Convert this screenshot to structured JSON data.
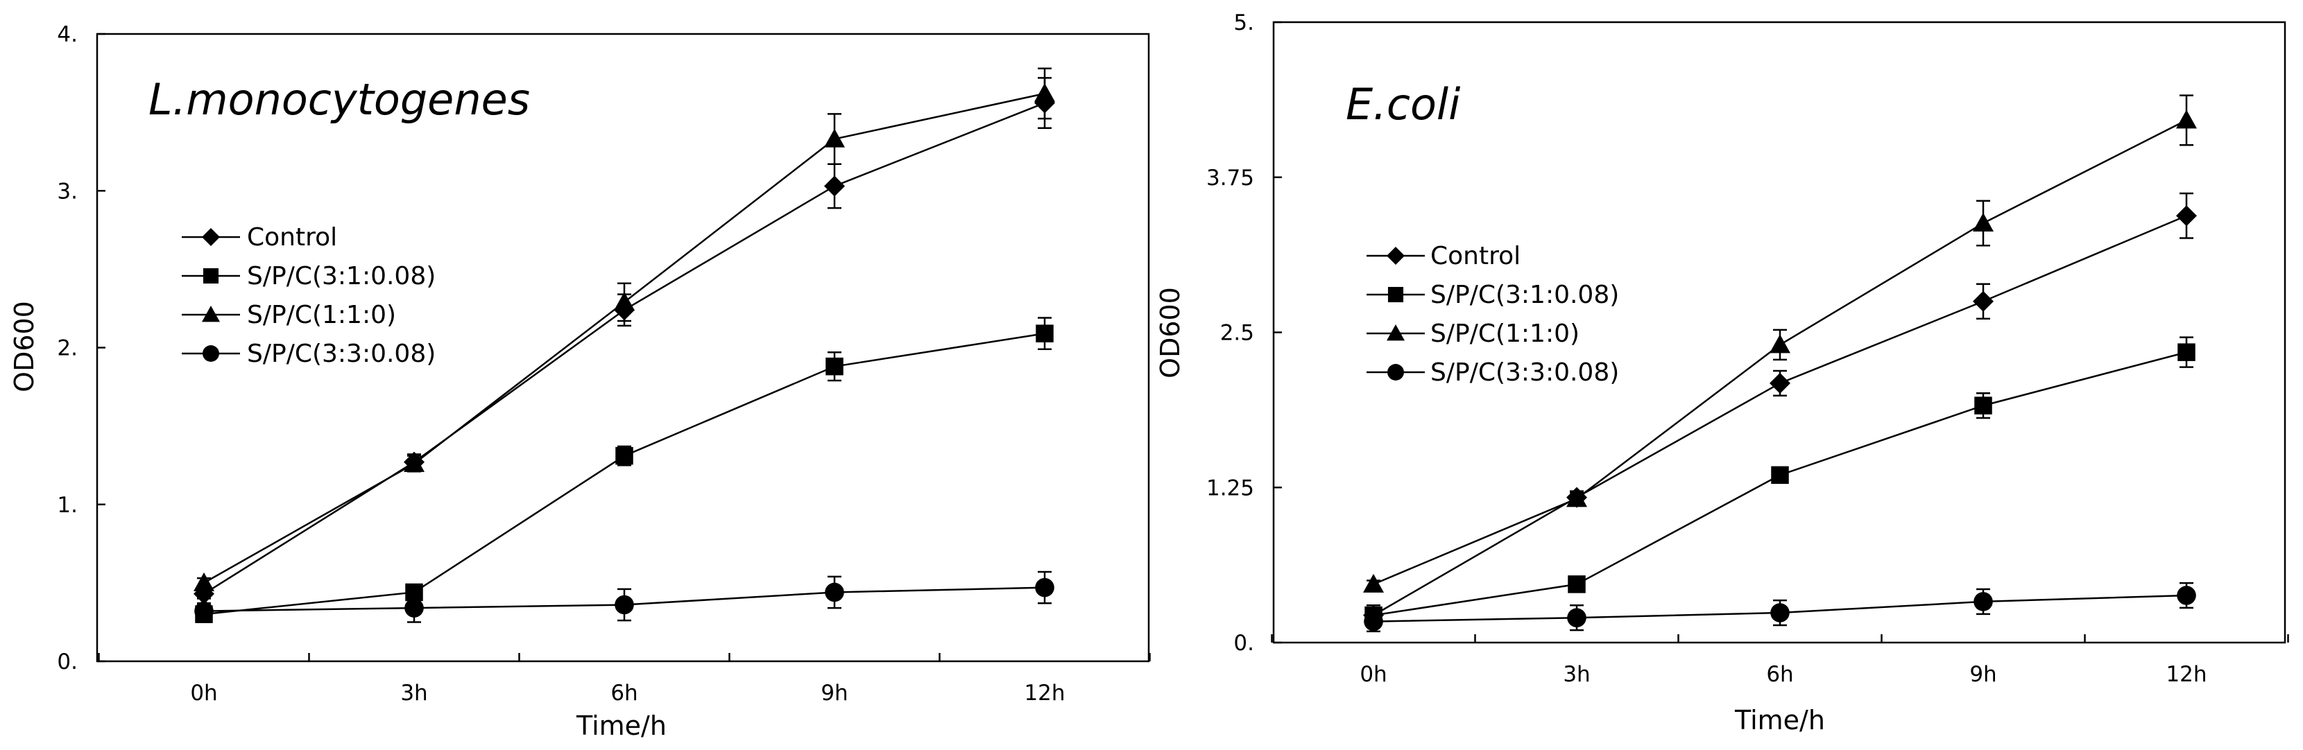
{
  "chart_data": [
    {
      "type": "line",
      "title": "L.monocytogenes",
      "xlabel": "Time/h",
      "ylabel": "OD600",
      "categories": [
        "0h",
        "3h",
        "6h",
        "9h",
        "12h"
      ],
      "ylim": [
        0,
        4
      ],
      "yticks": [
        "0.",
        "1.",
        "2.",
        "3.",
        "4."
      ],
      "grid": false,
      "legend_position": "left-middle",
      "series": [
        {
          "name": "Control",
          "marker": "diamond",
          "values": [
            0.43,
            1.27,
            2.24,
            3.03,
            3.56
          ],
          "errors": [
            0.03,
            0.05,
            0.1,
            0.14,
            0.16
          ]
        },
        {
          "name": "S/P/C(3:1:0.08)",
          "marker": "square",
          "values": [
            0.3,
            0.44,
            1.31,
            1.88,
            2.09
          ],
          "errors": [
            0.05,
            0.04,
            0.06,
            0.09,
            0.1
          ]
        },
        {
          "name": "S/P/C(1:1:0)",
          "marker": "triangle",
          "values": [
            0.5,
            1.26,
            2.29,
            3.33,
            3.62
          ],
          "errors": [
            0.03,
            0.05,
            0.12,
            0.16,
            0.16
          ]
        },
        {
          "name": "S/P/C(3:3:0.08)",
          "marker": "circle",
          "values": [
            0.32,
            0.34,
            0.36,
            0.44,
            0.47
          ],
          "errors": [
            0.05,
            0.09,
            0.1,
            0.1,
            0.1
          ]
        }
      ]
    },
    {
      "type": "line",
      "title": "E.coli",
      "xlabel": "Time/h",
      "ylabel": "OD600",
      "categories": [
        "0h",
        "3h",
        "6h",
        "9h",
        "12h"
      ],
      "ylim": [
        0,
        5
      ],
      "yticks": [
        "0.",
        "1.25",
        "2.5",
        "3.75",
        "5."
      ],
      "grid": false,
      "legend_position": "left-middle",
      "series": [
        {
          "name": "Control",
          "marker": "diamond",
          "values": [
            0.22,
            1.17,
            2.09,
            2.75,
            3.44
          ],
          "errors": [
            0.04,
            0.05,
            0.1,
            0.14,
            0.18
          ]
        },
        {
          "name": "S/P/C(3:1:0.08)",
          "marker": "square",
          "values": [
            0.22,
            0.47,
            1.35,
            1.91,
            2.34
          ],
          "errors": [
            0.08,
            0.05,
            0.06,
            0.1,
            0.12
          ]
        },
        {
          "name": "S/P/C(1:1:0)",
          "marker": "triangle",
          "values": [
            0.47,
            1.16,
            2.4,
            3.38,
            4.21
          ],
          "errors": [
            0.03,
            0.05,
            0.12,
            0.18,
            0.2
          ]
        },
        {
          "name": "S/P/C(3:3:0.08)",
          "marker": "circle",
          "values": [
            0.17,
            0.2,
            0.24,
            0.33,
            0.38
          ],
          "errors": [
            0.08,
            0.1,
            0.1,
            0.1,
            0.1
          ]
        }
      ]
    }
  ]
}
